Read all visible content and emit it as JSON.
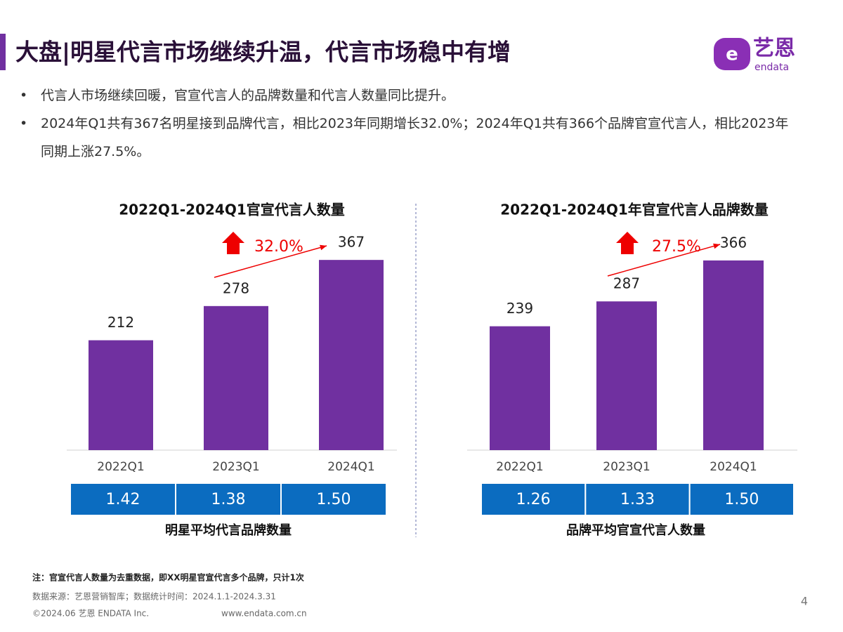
{
  "header": {
    "title": "大盘|明星代言市场继续升温，代言市场稳中有增",
    "logo_cn": "艺恩",
    "logo_en": "endata"
  },
  "bullets": [
    "代言人市场继续回暖，官宣代言人的品牌数量和代言人数量同比提升。",
    "2024年Q1共有367名明星接到品牌代言，相比2023年同期增长32.0%；2024年Q1共有366个品牌官宣代言人，相比2023年同期上涨27.5%。"
  ],
  "chart_data": [
    {
      "type": "bar",
      "title": "2022Q1-2024Q1官宣代言人数量",
      "categories": [
        "2022Q1",
        "2023Q1",
        "2024Q1"
      ],
      "values": [
        212,
        278,
        367
      ],
      "color": "#7030a0",
      "annotation": "32.0%",
      "table": {
        "cells": [
          "1.42",
          "1.38",
          "1.50"
        ],
        "caption": "明星平均代言品牌数量",
        "color": "#0b6cc0"
      }
    },
    {
      "type": "bar",
      "title": "2022Q1-2024Q1年官宣代言人品牌数量",
      "categories": [
        "2022Q1",
        "2023Q1",
        "2024Q1"
      ],
      "values": [
        239,
        287,
        366
      ],
      "color": "#7030a0",
      "annotation": "27.5%",
      "table": {
        "cells": [
          "1.26",
          "1.33",
          "1.50"
        ],
        "caption": "品牌平均官宣代言人数量",
        "color": "#0b6cc0"
      }
    }
  ],
  "footer": {
    "note": "注：官宣代言人数量为去重数据，即XX明星官宣代言多个品牌，只计1次",
    "source": "数据来源：艺恩营销智库；数据统计时间：2024.1.1-2024.3.31",
    "copyright": "©2024.06 艺恩 ENDATA Inc.",
    "url": "www.endata.com.cn",
    "page": "4"
  }
}
